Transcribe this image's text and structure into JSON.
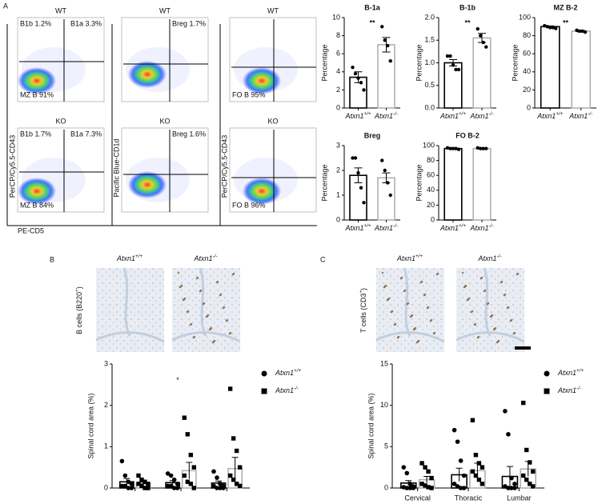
{
  "panel_labels": [
    "A",
    "B",
    "C"
  ],
  "flow": {
    "plots": [
      {
        "title": "WT",
        "gates": [
          "B1b 1.2%",
          "B1a 3.3%",
          "MZ B 91%"
        ]
      },
      {
        "title": "WT",
        "gates": [
          "Breg 1.7%"
        ]
      },
      {
        "title": "WT",
        "gates": [
          "FO B 95%"
        ]
      },
      {
        "title": "KO",
        "gates": [
          "B1b 1.7%",
          "B1a 7.3%",
          "MZ B 84%"
        ]
      },
      {
        "title": "KO",
        "gates": [
          "Breg 1.6%"
        ]
      },
      {
        "title": "KO",
        "gates": [
          "FO B 96%"
        ]
      }
    ],
    "y_labels": [
      "PerCP/Cy5.5-CD43",
      "Pacific Blue-CD1d",
      "PerCP/Cy5.5-CD43"
    ],
    "x_label": "PE-CD5"
  },
  "histology": [
    {
      "genotypes": [
        [
          "Atxn1",
          "+/+"
        ],
        [
          "Atxn1",
          "-/-"
        ]
      ],
      "stain": [
        "B cells (B220",
        "+",
        ")"
      ]
    },
    {
      "genotypes": [
        [
          "Atxn1",
          "+/+"
        ],
        [
          "Atxn1",
          "-/-"
        ]
      ],
      "stain": [
        "T cells (CD3",
        "+",
        ")"
      ]
    }
  ],
  "chart_data": [
    {
      "type": "bar",
      "title": "B-1a",
      "categories": [
        "Atxn1",
        "Atxn1"
      ],
      "category_sups": [
        "+/+",
        "-/-"
      ],
      "values": [
        3.4,
        7.0
      ],
      "errors": [
        0.6,
        0.8
      ],
      "points": [
        [
          4.5,
          3.8,
          3.3,
          2.8,
          2.0
        ],
        [
          9.0,
          7.5,
          6.9,
          5.2
        ]
      ],
      "colors": [
        "#000000",
        "#b0b0b0"
      ],
      "y_label": "Percentage",
      "ylim": [
        0,
        10
      ],
      "yticks": [
        0,
        2,
        4,
        6,
        8,
        10
      ],
      "annotation": "**"
    },
    {
      "type": "bar",
      "title": "B-1b",
      "categories": [
        "Atxn1",
        "Atxn1"
      ],
      "category_sups": [
        "+/+",
        "-/-"
      ],
      "values": [
        1.0,
        1.55
      ],
      "errors": [
        0.07,
        0.1
      ],
      "points": [
        [
          1.15,
          1.15,
          0.95,
          0.85,
          0.85
        ],
        [
          1.75,
          1.6,
          1.45,
          1.35
        ]
      ],
      "colors": [
        "#000000",
        "#b0b0b0"
      ],
      "y_label": "Percentage",
      "ylim": [
        0,
        2
      ],
      "yticks": [
        {
          "value": 0,
          "label": "0.0"
        },
        {
          "value": 0.5,
          "label": "0.5"
        },
        {
          "value": 1,
          "label": "1.0"
        },
        {
          "value": 1.5,
          "label": "1.5"
        },
        {
          "value": 2,
          "label": "2.0"
        }
      ],
      "annotation": "**"
    },
    {
      "type": "bar",
      "title": "MZ B-2",
      "categories": [
        "Atxn1",
        "Atxn1"
      ],
      "category_sups": [
        "+/+",
        "-/-"
      ],
      "values": [
        90,
        85
      ],
      "errors": [
        0.8,
        0.8
      ],
      "points": [
        [
          91,
          90,
          89,
          89,
          88
        ],
        [
          86,
          85,
          85,
          84
        ]
      ],
      "colors": [
        "#000000",
        "#b0b0b0"
      ],
      "y_label": "Percentage",
      "ylim": [
        0,
        100
      ],
      "yticks": [
        0,
        20,
        40,
        60,
        80,
        100
      ],
      "annotation": "**"
    },
    {
      "type": "bar",
      "title": "Breg",
      "categories": [
        "Atxn1",
        "Atxn1"
      ],
      "category_sups": [
        "+/+",
        "-/-"
      ],
      "values": [
        1.8,
        1.7
      ],
      "errors": [
        0.3,
        0.2
      ],
      "points": [
        [
          2.5,
          2.5,
          1.9,
          1.3,
          0.7
        ],
        [
          2.4,
          2.0,
          1.5,
          1.0
        ]
      ],
      "colors": [
        "#000000",
        "#b0b0b0"
      ],
      "y_label": "Percentage",
      "ylim": [
        0,
        3
      ],
      "yticks": [
        0,
        1,
        2,
        3
      ]
    },
    {
      "type": "bar",
      "title": "FO B-2",
      "categories": [
        "Atxn1",
        "Atxn1"
      ],
      "category_sups": [
        "+/+",
        "-/-"
      ],
      "values": [
        96,
        96
      ],
      "errors": [
        0.2,
        0.2
      ],
      "points": [
        [
          97,
          96,
          96,
          96,
          95
        ],
        [
          97,
          96,
          96,
          96
        ]
      ],
      "colors": [
        "#000000",
        "#b0b0b0"
      ],
      "y_label": "Percentage",
      "ylim": [
        0,
        100
      ],
      "yticks": [
        0,
        20,
        40,
        60,
        80,
        100
      ]
    },
    {
      "type": "grouped_bar",
      "categories": [
        null,
        null,
        null
      ],
      "y_label": "Spinal cord area (%)",
      "ylim": [
        0,
        3
      ],
      "yticks": [
        0,
        1,
        2,
        3
      ],
      "annotation": "*",
      "series": [
        {
          "name": "Atxn1",
          "name_sup": "+/+",
          "color": "#000000",
          "marker": "circle",
          "values": [
            0.15,
            0.13,
            0.12
          ],
          "errors": [
            0.08,
            0.05,
            0.05
          ],
          "points": [
            [
              0.65,
              0.3,
              0.15,
              0.1,
              0.05,
              0.05,
              0,
              0
            ],
            [
              0.35,
              0.3,
              0.2,
              0.1,
              0.05,
              0.05,
              0,
              0
            ],
            [
              0.4,
              0.25,
              0.1,
              0.05,
              0.05,
              0,
              0,
              0
            ]
          ]
        },
        {
          "name": "Atxn1",
          "name_sup": "-/-",
          "color": "#b0b0b0",
          "marker": "square",
          "values": [
            0.1,
            0.42,
            0.47
          ],
          "errors": [
            0.04,
            0.2,
            0.27
          ],
          "points": [
            [
              0.3,
              0.2,
              0.15,
              0.1,
              0.1,
              0.05,
              0,
              0
            ],
            [
              1.7,
              1.3,
              0.8,
              0.5,
              0.3,
              0.15,
              0.1,
              0
            ],
            [
              2.4,
              1.2,
              0.9,
              0.5,
              0.3,
              0.2,
              0.1,
              0.05
            ]
          ]
        }
      ]
    },
    {
      "type": "grouped_bar",
      "categories": [
        "Cervical",
        "Thoracic",
        "Lumbar"
      ],
      "y_label": "Spinal cord area (%)",
      "ylim": [
        0,
        15
      ],
      "yticks": [
        0,
        5,
        10,
        15
      ],
      "series": [
        {
          "name": "Atxn1",
          "name_sup": "+/+",
          "color": "#000000",
          "marker": "circle",
          "values": [
            0.6,
            1.6,
            1.4
          ],
          "errors": [
            0.3,
            0.8,
            1.2
          ],
          "points": [
            [
              2.5,
              1.8,
              0.5,
              0.2,
              0.1,
              0,
              0,
              0
            ],
            [
              7,
              5.6,
              3.3,
              1.5,
              0.5,
              0.2,
              0,
              0
            ],
            [
              9.3,
              6.5,
              1.2,
              0.5,
              0.2,
              0,
              0,
              0
            ]
          ]
        },
        {
          "name": "Atxn1",
          "name_sup": "-/-",
          "color": "#b0b0b0",
          "marker": "square",
          "values": [
            1.0,
            2.1,
            2.3
          ],
          "errors": [
            0.4,
            0.9,
            0.9
          ],
          "points": [
            [
              3,
              2.5,
              2,
              1.2,
              0.5,
              0.3,
              0.1,
              0
            ],
            [
              8.2,
              4,
              3,
              2.5,
              2,
              1.5,
              1,
              0.5
            ],
            [
              10.3,
              4.6,
              3.1,
              2,
              1.5,
              1,
              0.5,
              0.2
            ]
          ]
        }
      ]
    }
  ]
}
